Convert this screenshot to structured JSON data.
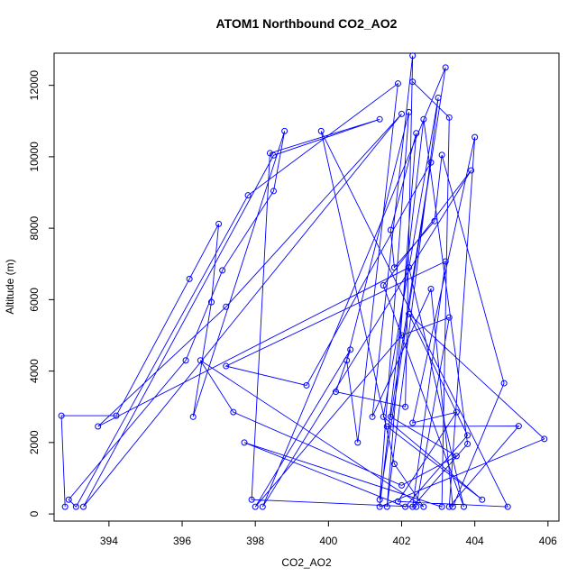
{
  "chart_data": {
    "type": "line",
    "title": "ATOM1 Northbound CO2_AO2",
    "xlabel": "CO2_AO2",
    "ylabel": "Altitude (m)",
    "xlim": [
      392.5,
      406.3
    ],
    "ylim": [
      -200,
      12900
    ],
    "x_ticks": [
      "394",
      "396",
      "398",
      "400",
      "402",
      "404",
      "406"
    ],
    "y_ticks": [
      "0",
      "2000",
      "4000",
      "6000",
      "8000",
      "10000",
      "12000"
    ],
    "x_tick_values": [
      394,
      396,
      398,
      400,
      402,
      404,
      406
    ],
    "y_tick_values": [
      0,
      2000,
      4000,
      6000,
      8000,
      10000,
      12000
    ],
    "grid": false,
    "color": "#0000ff",
    "marker": "open-circle",
    "series": [
      {
        "x": [
          392.8,
          392.7,
          394.2,
          396.2,
          397.0,
          396.8,
          396.3,
          398.8,
          398.5,
          397.1,
          396.1,
          392.9,
          393.1,
          397.8,
          401.9,
          400.8,
          400.5,
          402.2,
          401.4,
          403.2,
          398.2,
          403.9,
          401.5,
          403.7,
          402.2,
          393.7,
          397.2,
          402.0,
          393.3,
          398.5,
          401.4,
          398.4,
          397.9,
          402.4,
          403.3,
          402.0,
          398.0,
          400.6,
          400.2,
          402.1,
          402.3,
          401.2,
          402.8,
          403.4,
          404.8,
          403.1,
          402.9,
          401.8,
          401.7,
          402.4,
          401.6,
          403.0,
          401.5,
          404.2,
          401.6,
          405.2,
          403.3,
          404.0,
          402.3,
          403.5,
          401.9,
          404.9,
          399.8,
          401.8,
          402.6,
          396.5,
          397.4,
          402.0,
          403.5,
          401.7,
          402.8,
          399.4,
          397.2,
          403.2,
          402.3,
          403.8,
          402.6,
          401.4,
          405.9,
          402.2,
          403.8,
          402.1,
          397.7,
          403.1,
          403.3,
          402.3
        ],
        "y": [
          200,
          2750,
          2750,
          6580,
          8120,
          5930,
          2720,
          10720,
          9040,
          6820,
          4300,
          400,
          200,
          8920,
          12050,
          2000,
          4300,
          11250,
          400,
          12500,
          200,
          9620,
          6400,
          200,
          6900,
          2450,
          5800,
          11200,
          200,
          10040,
          11050,
          10100,
          400,
          200,
          5500,
          5000,
          200,
          4600,
          3420,
          3000,
          12830,
          2720,
          6300,
          200,
          3660,
          10050,
          8200,
          6900,
          7950,
          10660,
          200,
          11650,
          2720,
          400,
          2450,
          2460,
          200,
          10550,
          2550,
          2850,
          350,
          200,
          10720,
          1400,
          200,
          4300,
          2850,
          800,
          1620,
          2720,
          9840,
          3600,
          4140,
          7070,
          200,
          1960,
          11050,
          200,
          2100,
          5600,
          2200,
          200,
          2000,
          200,
          11100,
          12100
        ]
      }
    ]
  }
}
